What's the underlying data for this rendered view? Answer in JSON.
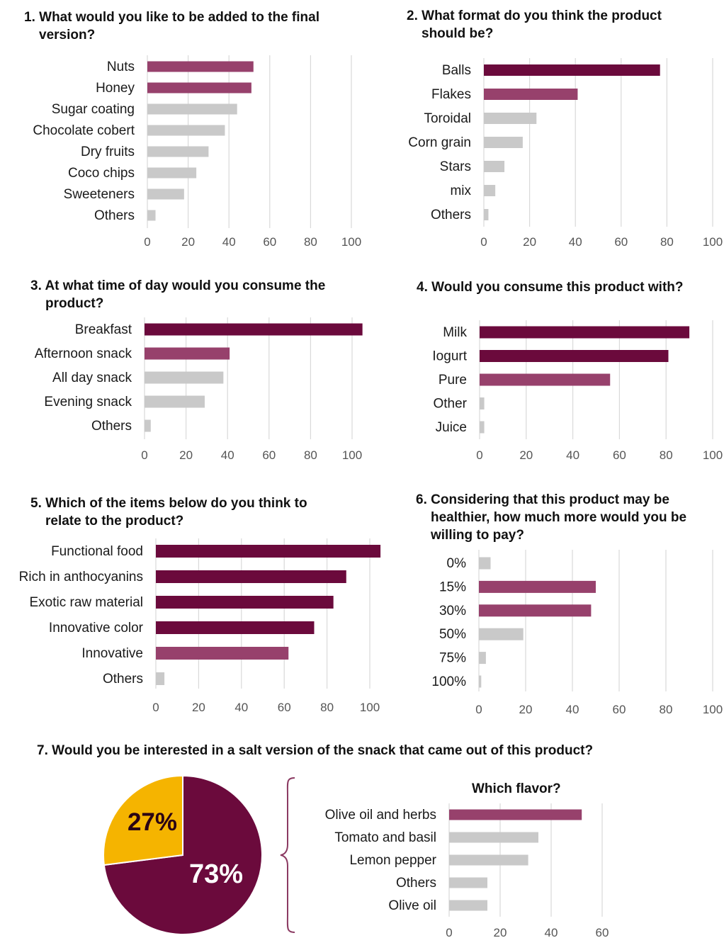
{
  "colors": {
    "dark": "#6b0a3c",
    "medium": "#97416c",
    "light": "#c9c9c9",
    "grid": "#d9d9d9",
    "pie_dark": "#6b0a3c",
    "pie_gold": "#f5b400"
  },
  "chart_data": [
    {
      "id": "q1",
      "type": "bar",
      "orientation": "horizontal",
      "title_num": "1.",
      "title_line1": "What would you like to be added to the final",
      "title_line2": "version?",
      "categories": [
        "Nuts",
        "Honey",
        "Sugar coating",
        "Chocolate cobert",
        "Dry fruits",
        "Coco chips",
        "Sweeteners",
        "Others"
      ],
      "values": [
        52,
        51,
        44,
        38,
        30,
        24,
        18,
        4
      ],
      "color_levels": [
        "medium",
        "medium",
        "light",
        "light",
        "light",
        "light",
        "light",
        "light"
      ],
      "xlim": [
        0,
        100
      ],
      "ticks": [
        0,
        20,
        40,
        60,
        80,
        100
      ],
      "grid": true
    },
    {
      "id": "q2",
      "type": "bar",
      "orientation": "horizontal",
      "title_num": "2.",
      "title_line1": "What format do you think the product",
      "title_line2": "should be?",
      "categories": [
        "Balls",
        "Flakes",
        "Toroidal",
        "Corn grain",
        "Stars",
        "mix",
        "Others"
      ],
      "values": [
        77,
        41,
        23,
        17,
        9,
        5,
        2
      ],
      "color_levels": [
        "dark",
        "medium",
        "light",
        "light",
        "light",
        "light",
        "light"
      ],
      "xlim": [
        0,
        100
      ],
      "ticks": [
        0,
        20,
        40,
        60,
        80,
        100
      ],
      "grid": true
    },
    {
      "id": "q3",
      "type": "bar",
      "orientation": "horizontal",
      "title_num": "3.",
      "title_line1": "At what time of day would you consume the",
      "title_line2": "product?",
      "categories": [
        "Breakfast",
        "Afternoon snack",
        "All day snack",
        "Evening snack",
        "Others"
      ],
      "values": [
        105,
        41,
        38,
        29,
        3
      ],
      "color_levels": [
        "dark",
        "medium",
        "light",
        "light",
        "light"
      ],
      "xlim": [
        0,
        100
      ],
      "ticks": [
        0,
        20,
        40,
        60,
        80,
        100
      ],
      "grid": true
    },
    {
      "id": "q4",
      "type": "bar",
      "orientation": "horizontal",
      "title_num": "4.",
      "title_line1": "Would you consume this product with?",
      "title_line2": "",
      "categories": [
        "Milk",
        "Iogurt",
        "Pure",
        "Other",
        "Juice"
      ],
      "values": [
        90,
        81,
        56,
        2,
        2
      ],
      "color_levels": [
        "dark",
        "dark",
        "medium",
        "light",
        "light"
      ],
      "xlim": [
        0,
        100
      ],
      "ticks": [
        0,
        20,
        40,
        60,
        80,
        100
      ],
      "grid": true
    },
    {
      "id": "q5",
      "type": "bar",
      "orientation": "horizontal",
      "title_num": "5.",
      "title_line1": "Which of the items below do you think to",
      "title_line2": "relate to the product?",
      "categories": [
        "Functional food",
        "Rich in anthocyanins",
        "Exotic raw material",
        "Innovative color",
        "Innovative",
        "Others"
      ],
      "values": [
        105,
        89,
        83,
        74,
        62,
        4
      ],
      "color_levels": [
        "dark",
        "dark",
        "dark",
        "dark",
        "medium",
        "light"
      ],
      "xlim": [
        0,
        100
      ],
      "ticks": [
        0,
        20,
        40,
        60,
        80,
        100
      ],
      "grid": true
    },
    {
      "id": "q6",
      "type": "bar",
      "orientation": "horizontal",
      "title_num": "6.",
      "title_line1": "Considering that this product may be",
      "title_line2": "healthier, how much more would you be",
      "title_line3": "willing to pay?",
      "categories": [
        "0%",
        "15%",
        "30%",
        "50%",
        "75%",
        "100%"
      ],
      "values": [
        5,
        50,
        48,
        19,
        3,
        1
      ],
      "color_levels": [
        "light",
        "medium",
        "medium",
        "light",
        "light",
        "light"
      ],
      "xlim": [
        0,
        100
      ],
      "ticks": [
        0,
        20,
        40,
        60,
        80,
        100
      ],
      "grid": true
    },
    {
      "id": "q7_pie",
      "type": "pie",
      "title": "7.  Would you be interested in a salt version of the snack that came out of this product?",
      "slices": [
        {
          "label": "73%",
          "value": 73,
          "color": "pie_dark"
        },
        {
          "label": "27%",
          "value": 27,
          "color": "pie_gold"
        }
      ]
    },
    {
      "id": "q7_flavor",
      "type": "bar",
      "orientation": "horizontal",
      "title": "Which flavor?",
      "categories": [
        "Olive oil and herbs",
        "Tomato and basil",
        "Lemon pepper",
        "Others",
        "Olive oil"
      ],
      "values": [
        52,
        35,
        31,
        15,
        15
      ],
      "color_levels": [
        "medium",
        "light",
        "light",
        "light",
        "light"
      ],
      "xlim": [
        0,
        60
      ],
      "ticks": [
        0,
        20,
        40,
        60
      ],
      "grid": true
    }
  ]
}
